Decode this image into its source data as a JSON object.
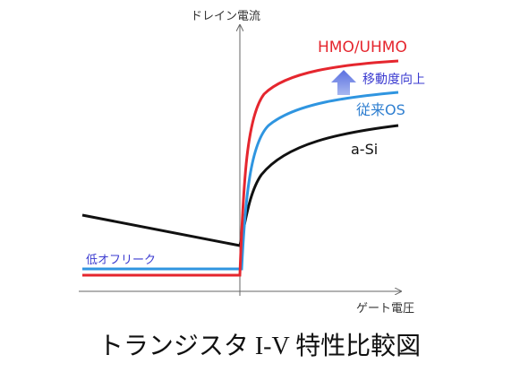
{
  "axes": {
    "y_label": "ドレイン電流",
    "x_label": "ゲート電圧"
  },
  "curves": [
    {
      "label": "HMO/UHMO"
    },
    {
      "label": "従来OS"
    },
    {
      "label": "a-Si"
    }
  ],
  "annotations": {
    "improvement": "移動度向上",
    "low_off_leak": "低オフリーク"
  },
  "caption": "トランジスタ I-V 特性比較図"
}
